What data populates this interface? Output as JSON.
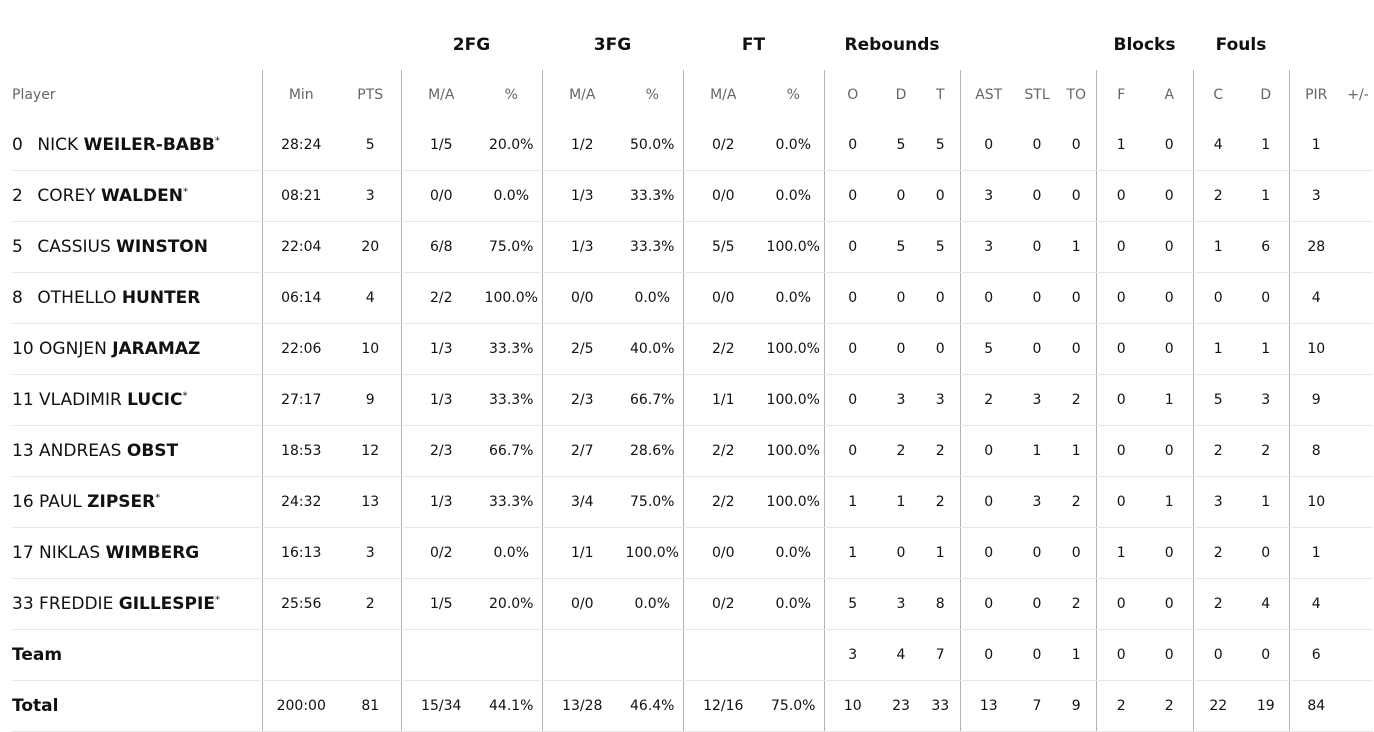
{
  "groups": {
    "fg2": "2FG",
    "fg3": "3FG",
    "ft": "FT",
    "reb": "Rebounds",
    "blk": "Blocks",
    "fouls": "Fouls"
  },
  "headers": [
    "Player",
    "Min",
    "PTS",
    "M/A",
    "%",
    "M/A",
    "%",
    "M/A",
    "%",
    "O",
    "D",
    "T",
    "AST",
    "STL",
    "TO",
    "F",
    "A",
    "C",
    "D",
    "PIR",
    "+/-"
  ],
  "players": [
    {
      "num": "0",
      "first": "NICK",
      "last": "WEILER-BABB",
      "star": "*",
      "stats": [
        "28:24",
        "5",
        "1/5",
        "20.0%",
        "1/2",
        "50.0%",
        "0/2",
        "0.0%",
        "0",
        "5",
        "5",
        "0",
        "0",
        "0",
        "1",
        "0",
        "4",
        "1",
        "1",
        ""
      ]
    },
    {
      "num": "2",
      "first": "COREY",
      "last": "WALDEN",
      "star": "*",
      "stats": [
        "08:21",
        "3",
        "0/0",
        "0.0%",
        "1/3",
        "33.3%",
        "0/0",
        "0.0%",
        "0",
        "0",
        "0",
        "3",
        "0",
        "0",
        "0",
        "0",
        "2",
        "1",
        "3",
        ""
      ]
    },
    {
      "num": "5",
      "first": "CASSIUS",
      "last": "WINSTON",
      "star": "",
      "stats": [
        "22:04",
        "20",
        "6/8",
        "75.0%",
        "1/3",
        "33.3%",
        "5/5",
        "100.0%",
        "0",
        "5",
        "5",
        "3",
        "0",
        "1",
        "0",
        "0",
        "1",
        "6",
        "28",
        ""
      ]
    },
    {
      "num": "8",
      "first": "OTHELLO",
      "last": "HUNTER",
      "star": "",
      "stats": [
        "06:14",
        "4",
        "2/2",
        "100.0%",
        "0/0",
        "0.0%",
        "0/0",
        "0.0%",
        "0",
        "0",
        "0",
        "0",
        "0",
        "0",
        "0",
        "0",
        "0",
        "0",
        "4",
        ""
      ]
    },
    {
      "num": "10",
      "first": "OGNJEN",
      "last": "JARAMAZ",
      "star": "",
      "stats": [
        "22:06",
        "10",
        "1/3",
        "33.3%",
        "2/5",
        "40.0%",
        "2/2",
        "100.0%",
        "0",
        "0",
        "0",
        "5",
        "0",
        "0",
        "0",
        "0",
        "1",
        "1",
        "10",
        ""
      ]
    },
    {
      "num": "11",
      "first": "VLADIMIR",
      "last": "LUCIC",
      "star": "*",
      "stats": [
        "27:17",
        "9",
        "1/3",
        "33.3%",
        "2/3",
        "66.7%",
        "1/1",
        "100.0%",
        "0",
        "3",
        "3",
        "2",
        "3",
        "2",
        "0",
        "1",
        "5",
        "3",
        "9",
        ""
      ]
    },
    {
      "num": "13",
      "first": "ANDREAS",
      "last": "OBST",
      "star": "",
      "stats": [
        "18:53",
        "12",
        "2/3",
        "66.7%",
        "2/7",
        "28.6%",
        "2/2",
        "100.0%",
        "0",
        "2",
        "2",
        "0",
        "1",
        "1",
        "0",
        "0",
        "2",
        "2",
        "8",
        ""
      ]
    },
    {
      "num": "16",
      "first": "PAUL",
      "last": "ZIPSER",
      "star": "*",
      "stats": [
        "24:32",
        "13",
        "1/3",
        "33.3%",
        "3/4",
        "75.0%",
        "2/2",
        "100.0%",
        "1",
        "1",
        "2",
        "0",
        "3",
        "2",
        "0",
        "1",
        "3",
        "1",
        "10",
        ""
      ]
    },
    {
      "num": "17",
      "first": "NIKLAS",
      "last": "WIMBERG",
      "star": "",
      "stats": [
        "16:13",
        "3",
        "0/2",
        "0.0%",
        "1/1",
        "100.0%",
        "0/0",
        "0.0%",
        "1",
        "0",
        "1",
        "0",
        "0",
        "0",
        "1",
        "0",
        "2",
        "0",
        "1",
        ""
      ]
    },
    {
      "num": "33",
      "first": "FREDDIE",
      "last": "GILLESPIE",
      "star": "*",
      "stats": [
        "25:56",
        "2",
        "1/5",
        "20.0%",
        "0/0",
        "0.0%",
        "0/2",
        "0.0%",
        "5",
        "3",
        "8",
        "0",
        "0",
        "2",
        "0",
        "0",
        "2",
        "4",
        "4",
        ""
      ]
    }
  ],
  "team": {
    "label": "Team",
    "stats": [
      "",
      "",
      "",
      "",
      "",
      "",
      "",
      "",
      "3",
      "4",
      "7",
      "0",
      "0",
      "1",
      "0",
      "0",
      "0",
      "0",
      "6",
      ""
    ]
  },
  "total": {
    "label": "Total",
    "stats": [
      "200:00",
      "81",
      "15/34",
      "44.1%",
      "13/28",
      "46.4%",
      "12/16",
      "75.0%",
      "10",
      "23",
      "33",
      "13",
      "7",
      "9",
      "2",
      "2",
      "22",
      "19",
      "84",
      ""
    ]
  }
}
